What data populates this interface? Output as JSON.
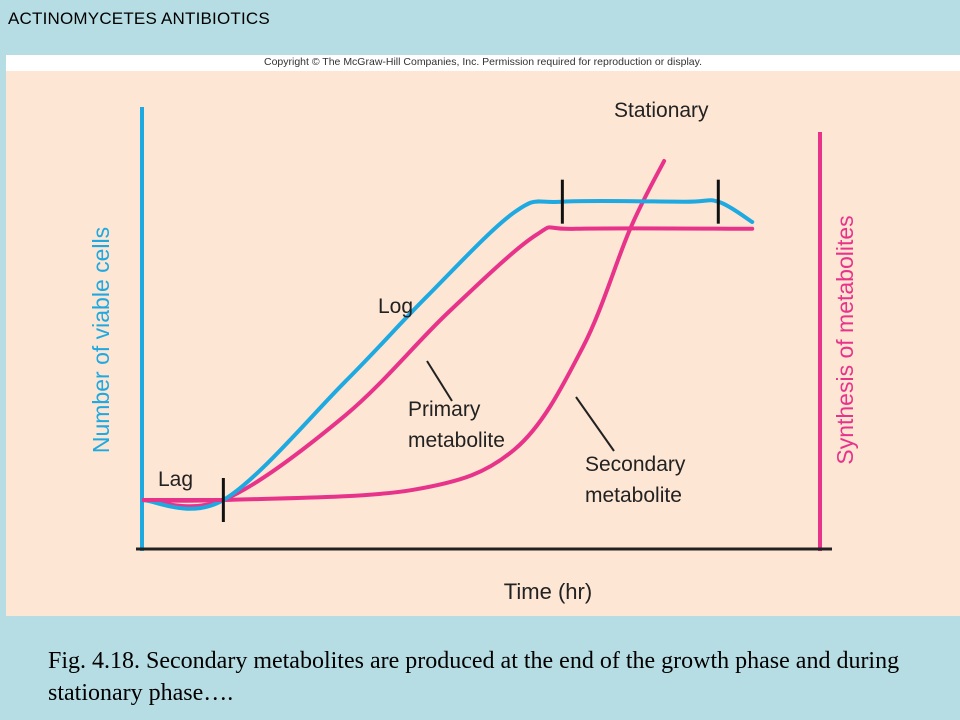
{
  "slide": {
    "title": "ACTINOMYCETES ANTIBIOTICS",
    "copyright": "Copyright © The McGraw-Hill Companies, Inc. Permission required for reproduction or display.",
    "caption": "Fig. 4.18.  Secondary metabolites are produced at the end of the growth phase and during stationary phase…."
  },
  "chart_data": {
    "type": "line",
    "xlabel": "Time (hr)",
    "ylabel_left": "Number of viable cells",
    "ylabel_right": "Synthesis of metabolites",
    "phase_labels": [
      "Lag",
      "Log",
      "Stationary"
    ],
    "series": [
      {
        "name": "Number of viable cells",
        "color": "#1fa9e1",
        "values": [
          [
            0,
            0
          ],
          [
            0.12,
            0
          ],
          [
            0.3,
            0.35
          ],
          [
            0.42,
            0.6
          ],
          [
            0.55,
            0.85
          ],
          [
            0.62,
            0.88
          ],
          [
            0.8,
            0.88
          ],
          [
            0.85,
            0.88
          ],
          [
            0.9,
            0.82
          ]
        ]
      },
      {
        "name": "Primary metabolite",
        "label": "Primary\nmetabolite",
        "color": "#e8338a",
        "values": [
          [
            0,
            0
          ],
          [
            0.12,
            0
          ],
          [
            0.3,
            0.25
          ],
          [
            0.45,
            0.55
          ],
          [
            0.58,
            0.78
          ],
          [
            0.64,
            0.8
          ],
          [
            0.9,
            0.8
          ]
        ]
      },
      {
        "name": "Secondary metabolite",
        "label": "Secondary\nmetabolite",
        "color": "#e8338a",
        "values": [
          [
            0,
            0
          ],
          [
            0.12,
            0
          ],
          [
            0.4,
            0.03
          ],
          [
            0.55,
            0.15
          ],
          [
            0.65,
            0.45
          ],
          [
            0.72,
            0.8
          ],
          [
            0.77,
            1.0
          ]
        ]
      }
    ],
    "phase_markers": [
      0.12,
      0.62,
      0.85
    ]
  },
  "colors": {
    "cyan": "#1fa9e1",
    "magenta": "#e8338a",
    "panel": "#fde6d4",
    "background": "#b6dde3"
  }
}
